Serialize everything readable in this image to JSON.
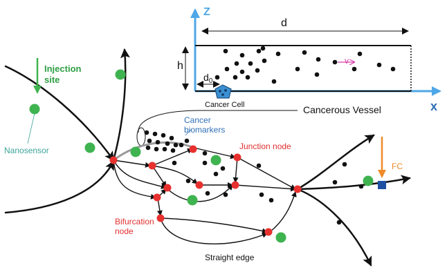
{
  "labels": {
    "axis_z": "Z",
    "axis_x": "x",
    "dim_d": "d",
    "dim_h": "h",
    "dim_d0": "d",
    "dim_d0_sub": "0",
    "velocity": "v",
    "cancer_cell": "Cancer Cell",
    "cancerous_vessel": "Cancerous Vessel",
    "injection_site_line1": "Injection",
    "injection_site_line2": "site",
    "nanosensor": "Nanosensor",
    "cancer_biomarkers_line1": "Cancer",
    "cancer_biomarkers_line2": "biomarkers",
    "junction_node": "Junction node",
    "bifurcation_node_line1": "Bifurcation",
    "bifurcation_node_line2": "node",
    "fc": "FC",
    "straight_edge": "Straight edge"
  },
  "colors": {
    "axis_blue": "#4ea7e6",
    "node_red": "#e8312f",
    "sensor_green": "#3fb34f",
    "label_green": "#2e9e43",
    "nanosensor_label": "#3aa59a",
    "biomarker_blue": "#2f6fb5",
    "label_red": "#e0302f",
    "fc_orange": "#f08a2a",
    "cell_blue": "#3a8fd1",
    "velocity_magenta": "#d63ba6",
    "edge_black": "#111111",
    "fc_square": "#1f4fa0"
  },
  "icons": {
    "cancer_cell": "pentagon-cell-icon",
    "fc_detector": "square-detector-icon"
  }
}
